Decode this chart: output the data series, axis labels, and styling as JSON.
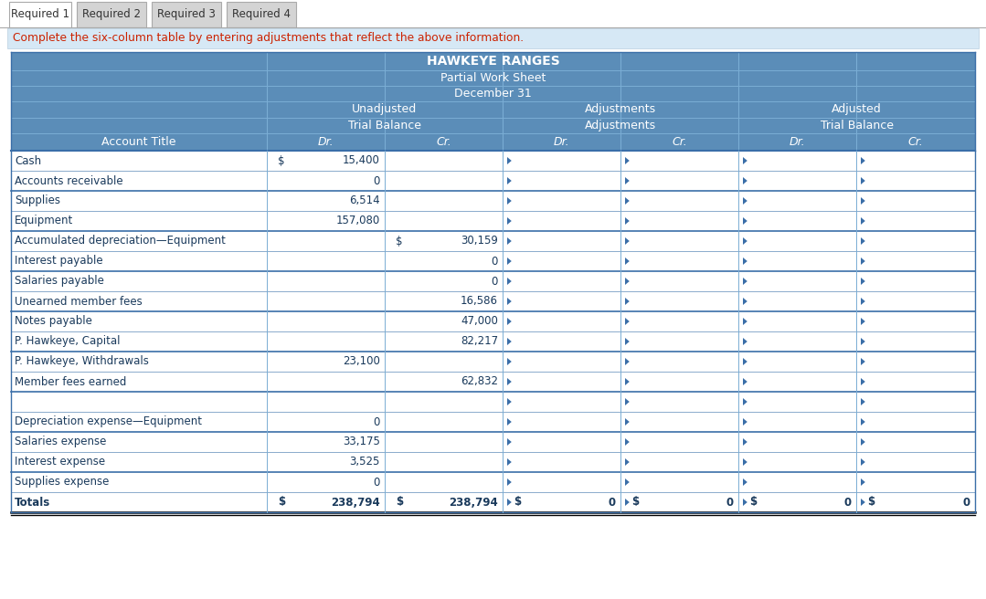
{
  "title1": "HAWKEYE RANGES",
  "title2": "Partial Work Sheet",
  "title3": "December 31",
  "tabs": [
    "Required 1",
    "Required 2",
    "Required 3",
    "Required 4"
  ],
  "instruction": "Complete the six-column table by entering adjustments that reflect the above information.",
  "rows": [
    [
      "Cash",
      "$",
      "15,400",
      "",
      "",
      "",
      "",
      "",
      "",
      "",
      "",
      "",
      ""
    ],
    [
      "Accounts receivable",
      "",
      "0",
      "",
      "",
      "",
      "",
      "",
      "",
      "",
      "",
      "",
      ""
    ],
    [
      "Supplies",
      "",
      "6,514",
      "",
      "",
      "",
      "",
      "",
      "",
      "",
      "",
      "",
      ""
    ],
    [
      "Equipment",
      "",
      "157,080",
      "",
      "",
      "",
      "",
      "",
      "",
      "",
      "",
      "",
      ""
    ],
    [
      "Accumulated depreciation—Equipment",
      "",
      "",
      "$",
      "30,159",
      "",
      "",
      "",
      "",
      "",
      "",
      "",
      ""
    ],
    [
      "Interest payable",
      "",
      "",
      "",
      "0",
      "",
      "",
      "",
      "",
      "",
      "",
      "",
      ""
    ],
    [
      "Salaries payable",
      "",
      "",
      "",
      "0",
      "",
      "",
      "",
      "",
      "",
      "",
      "",
      ""
    ],
    [
      "Unearned member fees",
      "",
      "",
      "",
      "16,586",
      "",
      "",
      "",
      "",
      "",
      "",
      "",
      ""
    ],
    [
      "Notes payable",
      "",
      "",
      "",
      "47,000",
      "",
      "",
      "",
      "",
      "",
      "",
      "",
      ""
    ],
    [
      "P. Hawkeye, Capital",
      "",
      "",
      "",
      "82,217",
      "",
      "",
      "",
      "",
      "",
      "",
      "",
      ""
    ],
    [
      "P. Hawkeye, Withdrawals",
      "",
      "23,100",
      "",
      "",
      "",
      "",
      "",
      "",
      "",
      "",
      "",
      ""
    ],
    [
      "Member fees earned",
      "",
      "",
      "",
      "62,832",
      "",
      "",
      "",
      "",
      "",
      "",
      "",
      ""
    ],
    [
      "",
      "",
      "",
      "",
      "",
      "",
      "",
      "",
      "",
      "",
      "",
      "",
      ""
    ],
    [
      "Depreciation expense—Equipment",
      "",
      "0",
      "",
      "",
      "",
      "",
      "",
      "",
      "",
      "",
      "",
      ""
    ],
    [
      "Salaries expense",
      "",
      "33,175",
      "",
      "",
      "",
      "",
      "",
      "",
      "",
      "",
      "",
      ""
    ],
    [
      "Interest expense",
      "",
      "3,525",
      "",
      "",
      "",
      "",
      "",
      "",
      "",
      "",
      "",
      ""
    ],
    [
      "Supplies expense",
      "",
      "0",
      "",
      "",
      "",
      "",
      "",
      "",
      "",
      "",
      "",
      ""
    ],
    [
      "Totals",
      "$",
      "238,794",
      "$",
      "238,794",
      "$",
      "0",
      "$",
      "0",
      "$",
      "0",
      "$",
      "0"
    ]
  ],
  "table_header_bg": "#5B8DB8",
  "header_text_color": "#FFFFFF",
  "cell_text_color": "#1a3a5c",
  "border_color_dark": "#3a6ea8",
  "border_color_light": "#7aadd4",
  "tab_bg": "#D4D4D4",
  "tab_active_bg": "#FFFFFF",
  "instruction_bg": "#D6E8F5",
  "instruction_text_color": "#CC2200",
  "row_border_blue": "#4a7cb5",
  "row_border_grey": "#999999",
  "input_marker_color": "#3a6ea8"
}
